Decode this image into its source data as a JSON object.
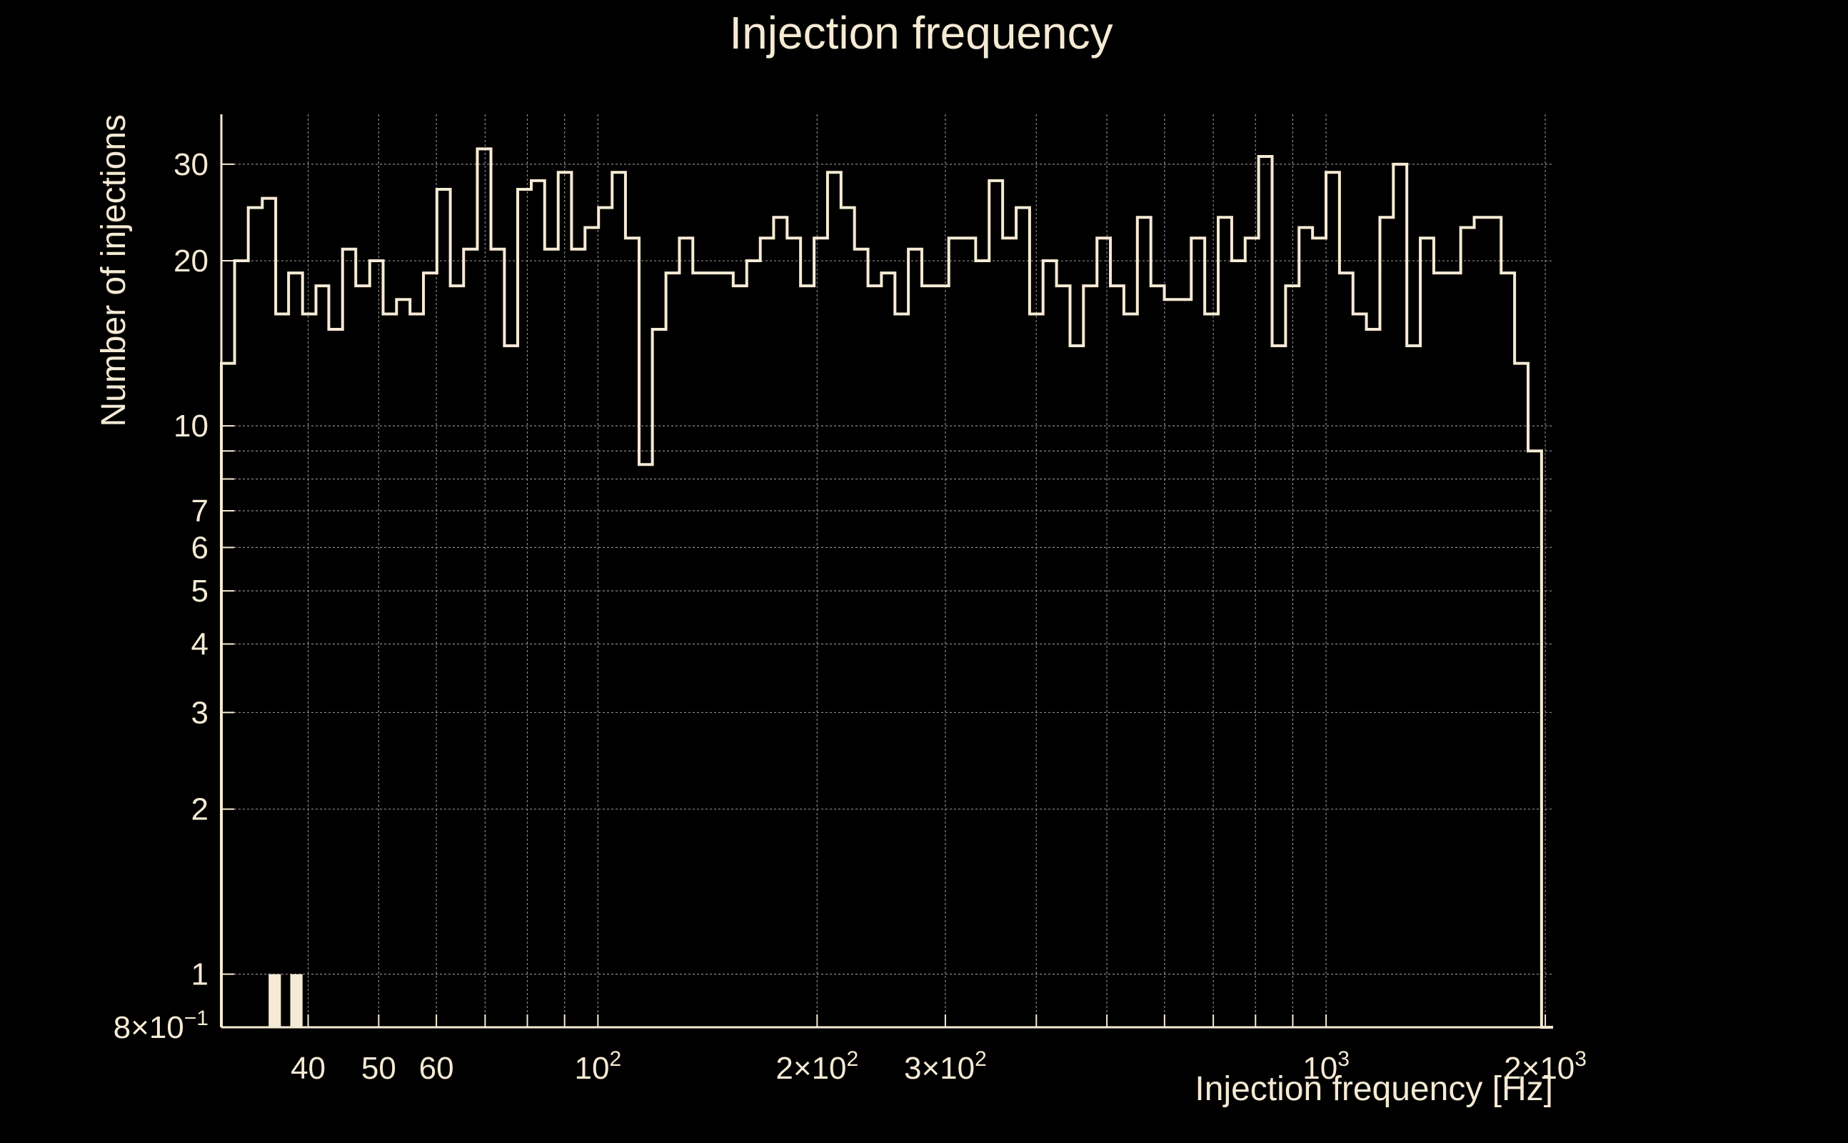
{
  "chart_data": {
    "type": "bar",
    "title": "Injection frequency",
    "xlabel": "Injection frequency [Hz]",
    "ylabel": "Number of injections",
    "x_scale": "log",
    "y_scale": "log",
    "xlim": [
      30.4,
      2050
    ],
    "ylim": [
      0.8,
      37
    ],
    "grid": true,
    "colors": {
      "background": "#000000",
      "foreground": "#f5ead4",
      "grid": "#8a8a8a"
    },
    "x_ticks": [
      {
        "value": 40,
        "label": "40"
      },
      {
        "value": 50,
        "label": "50"
      },
      {
        "value": 60,
        "label": "60"
      },
      {
        "value": 100,
        "base": "10",
        "exp": "2"
      },
      {
        "value": 200,
        "base": "2×10",
        "exp": "2"
      },
      {
        "value": 300,
        "base": "3×10",
        "exp": "2"
      },
      {
        "value": 1000,
        "base": "10",
        "exp": "3"
      },
      {
        "value": 2000,
        "base": "2×10",
        "exp": "3"
      }
    ],
    "y_ticks": [
      {
        "value": 0.8,
        "base": "8×10",
        "exp": "−1"
      },
      {
        "value": 1,
        "label": "1"
      },
      {
        "value": 2,
        "label": "2"
      },
      {
        "value": 3,
        "label": "3"
      },
      {
        "value": 4,
        "label": "4"
      },
      {
        "value": 5,
        "label": "5"
      },
      {
        "value": 6,
        "label": "6"
      },
      {
        "value": 7,
        "label": "7"
      },
      {
        "value": 10,
        "label": "10"
      },
      {
        "value": 20,
        "label": "20"
      },
      {
        "value": 30,
        "label": "30"
      }
    ],
    "x_grid_values": [
      40,
      50,
      60,
      70,
      80,
      90,
      100,
      200,
      300,
      400,
      500,
      600,
      700,
      800,
      900,
      1000,
      2000
    ],
    "y_grid_values": [
      1,
      2,
      3,
      4,
      5,
      6,
      7,
      8,
      9,
      10,
      20,
      30
    ],
    "bin_edges": [
      30.4,
      31.7,
      33.1,
      34.6,
      36.1,
      37.6,
      39.3,
      41.0,
      42.7,
      44.6,
      46.5,
      48.6,
      50.7,
      52.9,
      55.2,
      57.6,
      60.1,
      62.7,
      65.4,
      68.3,
      71.3,
      74.4,
      77.6,
      81.0,
      84.5,
      88.2,
      92.0,
      96.0,
      100.2,
      104.6,
      109.1,
      113.9,
      118.8,
      124.0,
      129.4,
      135.0,
      140.9,
      147.0,
      153.4,
      160.1,
      167.1,
      174.3,
      181.9,
      189.8,
      198.1,
      206.7,
      215.7,
      225.1,
      234.9,
      245.1,
      255.8,
      266.9,
      278.5,
      290.6,
      303.3,
      316.5,
      330.2,
      344.6,
      359.6,
      375.3,
      391.6,
      408.6,
      426.4,
      445.0,
      464.3,
      484.6,
      505.6,
      527.6,
      550.6,
      574.6,
      599.6,
      625.7,
      652.9,
      681.3,
      711.0,
      742.0,
      774.2,
      807.9,
      843.1,
      879.8,
      918.1,
      958.1,
      999.8,
      1043.3,
      1088.7,
      1136.0,
      1185.5,
      1237.1,
      1290.9,
      1347.1,
      1405.7,
      1466.9,
      1530.7,
      1597.4,
      1666.9,
      1739.4,
      1815.1,
      1894.1,
      1976.6,
      2050.0
    ],
    "values": [
      13,
      20,
      25,
      26,
      16,
      19,
      16,
      18,
      15,
      21,
      18,
      20,
      16,
      17,
      16,
      19,
      27,
      18,
      21,
      32,
      21,
      14,
      27,
      28,
      21,
      29,
      21,
      23,
      25,
      29,
      22,
      8.5,
      15,
      19,
      22,
      19,
      19,
      19,
      18,
      20,
      22,
      24,
      22,
      18,
      22,
      29,
      25,
      21,
      18,
      19,
      16,
      21,
      18,
      18,
      22,
      22,
      20,
      28,
      22,
      25,
      16,
      20,
      18,
      14,
      18,
      22,
      18,
      16,
      24,
      18,
      17,
      17,
      22,
      16,
      24,
      20,
      22,
      31,
      14,
      18,
      23,
      22,
      29,
      19,
      16,
      15,
      24,
      30,
      14,
      22,
      19,
      19,
      23,
      24,
      24,
      19,
      13,
      9,
      0
    ],
    "low_bars": [
      {
        "x0": 35.3,
        "x1": 36.7,
        "value": 1
      },
      {
        "x0": 37.8,
        "x1": 39.3,
        "value": 1
      }
    ]
  }
}
